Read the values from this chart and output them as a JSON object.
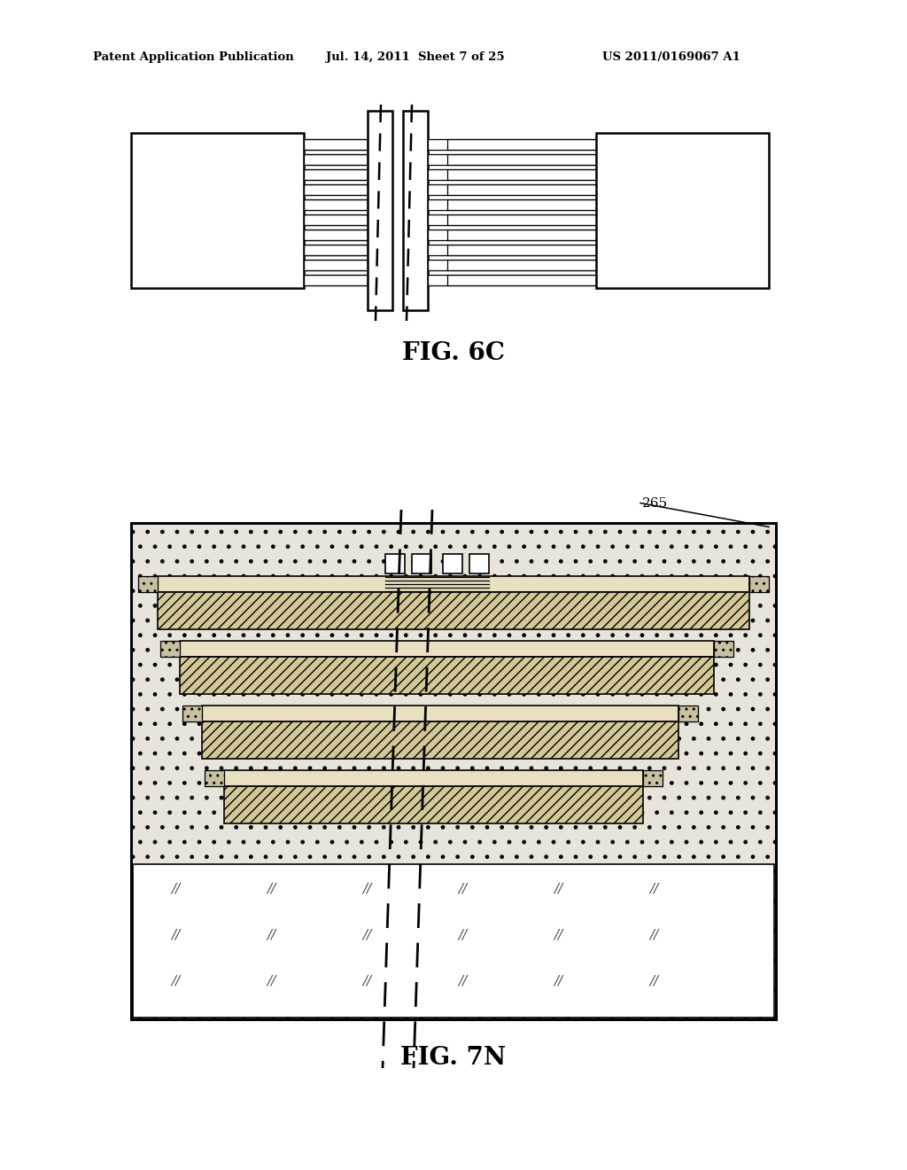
{
  "bg_color": "#ffffff",
  "header_left": "Patent Application Publication",
  "header_center": "Jul. 14, 2011  Sheet 7 of 25",
  "header_right": "US 2011/0169067 A1",
  "fig6c_label": "FIG. 6C",
  "fig7n_label": "FIG. 7N",
  "label_265": "265",
  "stipple_color": "#e8e4dc",
  "hatch_fc": "#d4c898",
  "thin_fc": "#e8e0c0",
  "cap_fc": "#c8c0a0"
}
